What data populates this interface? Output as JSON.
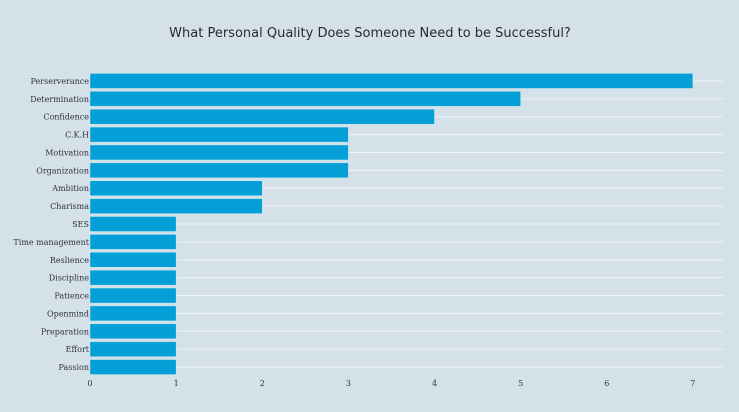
{
  "chart_data": {
    "type": "bar",
    "orientation": "horizontal",
    "title": "What Personal Quality Does Someone Need to be Successful?",
    "xlabel": "",
    "ylabel": "",
    "categories": [
      "Perserverance",
      "Determination",
      "Confidence",
      "C.K.H",
      "Motivation",
      "Organization",
      "Ambition",
      "Charisma",
      "SES",
      "Time management",
      "Reslience",
      "Discipline",
      "Patience",
      "Openmind",
      "Preparation",
      "Effort",
      "Passion"
    ],
    "values": [
      7,
      5,
      4,
      3,
      3,
      3,
      2,
      2,
      1,
      1,
      1,
      1,
      1,
      1,
      1,
      1,
      1
    ],
    "xlim": [
      0,
      7.35
    ],
    "xticks": [
      0,
      1,
      2,
      3,
      4,
      5,
      6,
      7
    ],
    "grid": "horizontal lines at categories",
    "legend": "none",
    "colors": {
      "bar": "#039fd6",
      "background": "#d5e1e9",
      "grid": "#eef4f8"
    }
  }
}
